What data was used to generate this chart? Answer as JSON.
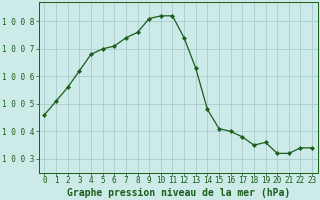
{
  "x": [
    0,
    1,
    2,
    3,
    4,
    5,
    6,
    7,
    8,
    9,
    10,
    11,
    12,
    13,
    14,
    15,
    16,
    17,
    18,
    19,
    20,
    21,
    22,
    23
  ],
  "y": [
    1004.6,
    1005.1,
    1005.6,
    1006.2,
    1006.8,
    1007.0,
    1007.1,
    1007.4,
    1007.6,
    1008.1,
    1008.2,
    1008.2,
    1007.4,
    1006.3,
    1004.8,
    1004.1,
    1004.0,
    1003.8,
    1003.5,
    1003.6,
    1003.2,
    1003.2,
    1003.4,
    1003.4
  ],
  "line_color": "#1a5c1a",
  "marker": "D",
  "marker_size": 2.2,
  "bg_color": "#cceae8",
  "grid_color": "#aacccc",
  "title": "Graphe pression niveau de la mer (hPa)",
  "ylim": [
    1002.5,
    1008.7
  ],
  "xlim": [
    -0.5,
    23.5
  ],
  "ytick_labels": [
    "1 0 0 3",
    "1 0 0 4",
    "1 0 0 5",
    "1 0 0 6",
    "1 0 0 7",
    "1 0 0 8"
  ],
  "ytick_vals": [
    1003,
    1004,
    1005,
    1006,
    1007,
    1008
  ],
  "xticks": [
    0,
    1,
    2,
    3,
    4,
    5,
    6,
    7,
    8,
    9,
    10,
    11,
    12,
    13,
    14,
    15,
    16,
    17,
    18,
    19,
    20,
    21,
    22,
    23
  ],
  "tick_fontsize": 5.5,
  "title_fontsize": 7.0,
  "title_fontweight": "bold"
}
